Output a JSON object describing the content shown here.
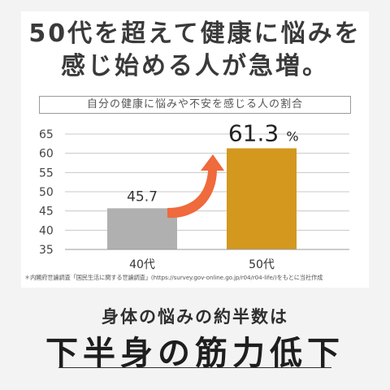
{
  "headline": {
    "line1": "50代を超えて健康に悩みを",
    "line2": "感じ始める人が急増。"
  },
  "chart_data": {
    "type": "bar",
    "title": "自分の健康に悩みや不安を感じる人の割合",
    "categories": [
      "40代",
      "50代"
    ],
    "values": [
      45.7,
      61.3
    ],
    "value_labels": [
      "45.7",
      "61.3"
    ],
    "value_unit": "%",
    "yticks": [
      "65",
      "60",
      "55",
      "50",
      "45",
      "40",
      "35"
    ],
    "ylim": [
      35,
      65
    ],
    "grid": true,
    "bar_colors": [
      "#b0b0b0",
      "#d4981e"
    ],
    "arrow_color": "#ef6a3c"
  },
  "source": "＊内閣府世論調査「国民生活に関する世論調査」(https://survey.gov-online.go.jp/r04/r04-life/)をもとに当社作成",
  "footer": {
    "lead": "身体の悩みの約半数は",
    "main": "下半身の筋力低下"
  }
}
